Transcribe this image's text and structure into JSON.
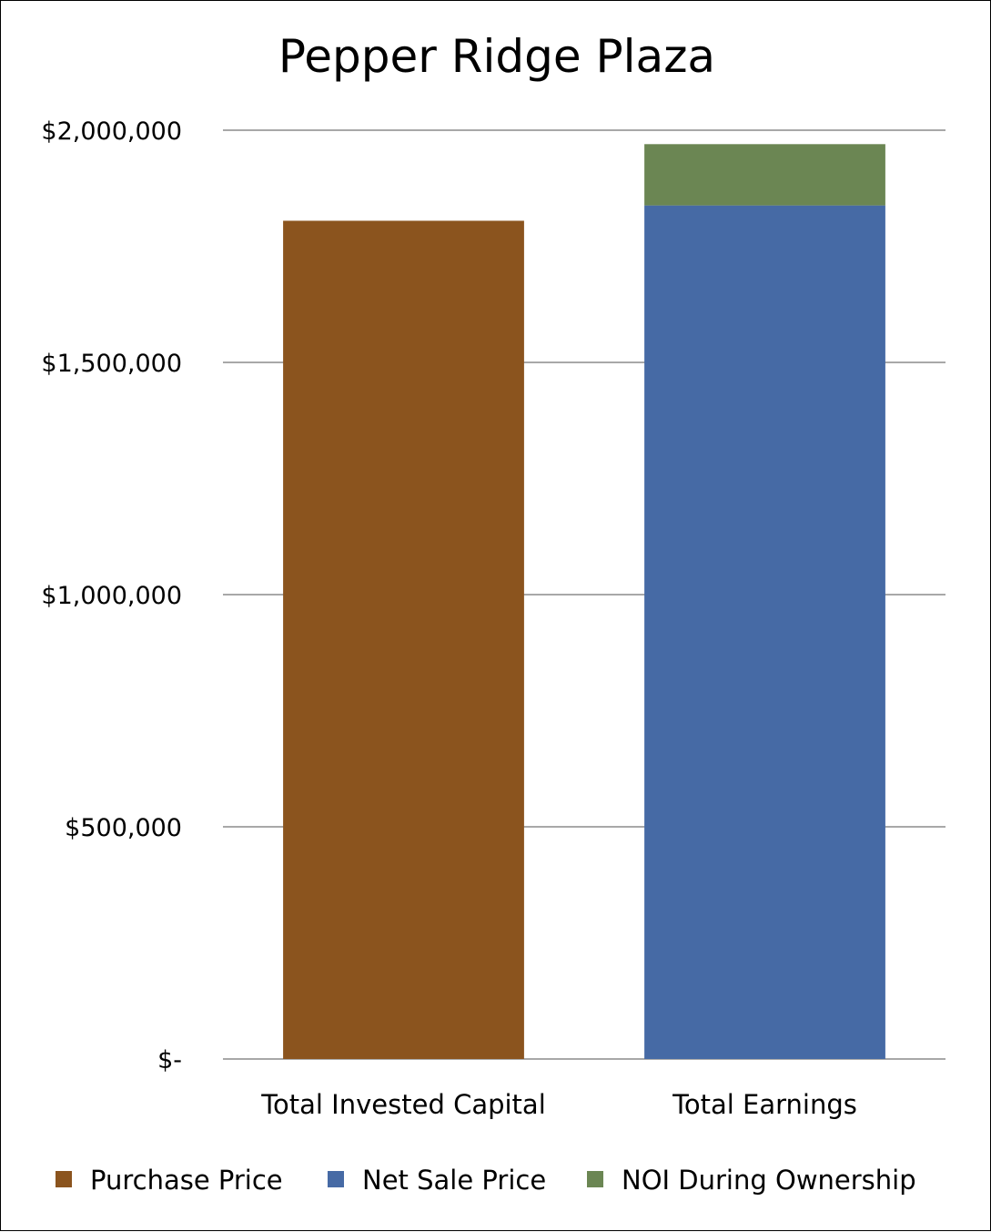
{
  "chart_data": {
    "type": "bar",
    "stacked": true,
    "title": "Pepper Ridge Plaza",
    "categories": [
      "Total Invested Capital",
      "Total Earnings"
    ],
    "series": [
      {
        "name": "Purchase Price",
        "color": "#8B541E",
        "values": [
          1805000,
          0
        ]
      },
      {
        "name": "Net Sale Price",
        "color": "#466AA5",
        "values": [
          0,
          1838000
        ]
      },
      {
        "name": "NOI During Ownership",
        "color": "#6B8653",
        "values": [
          0,
          132000
        ]
      }
    ],
    "yticks": [
      {
        "value": 0,
        "label": "$-"
      },
      {
        "value": 500000,
        "label": "$500,000"
      },
      {
        "value": 1000000,
        "label": "$1,000,000"
      },
      {
        "value": 1500000,
        "label": "$1,500,000"
      },
      {
        "value": 2000000,
        "label": "$2,000,000"
      }
    ],
    "ylim": [
      0,
      2000000
    ],
    "grid": true,
    "legend_position": "bottom"
  }
}
